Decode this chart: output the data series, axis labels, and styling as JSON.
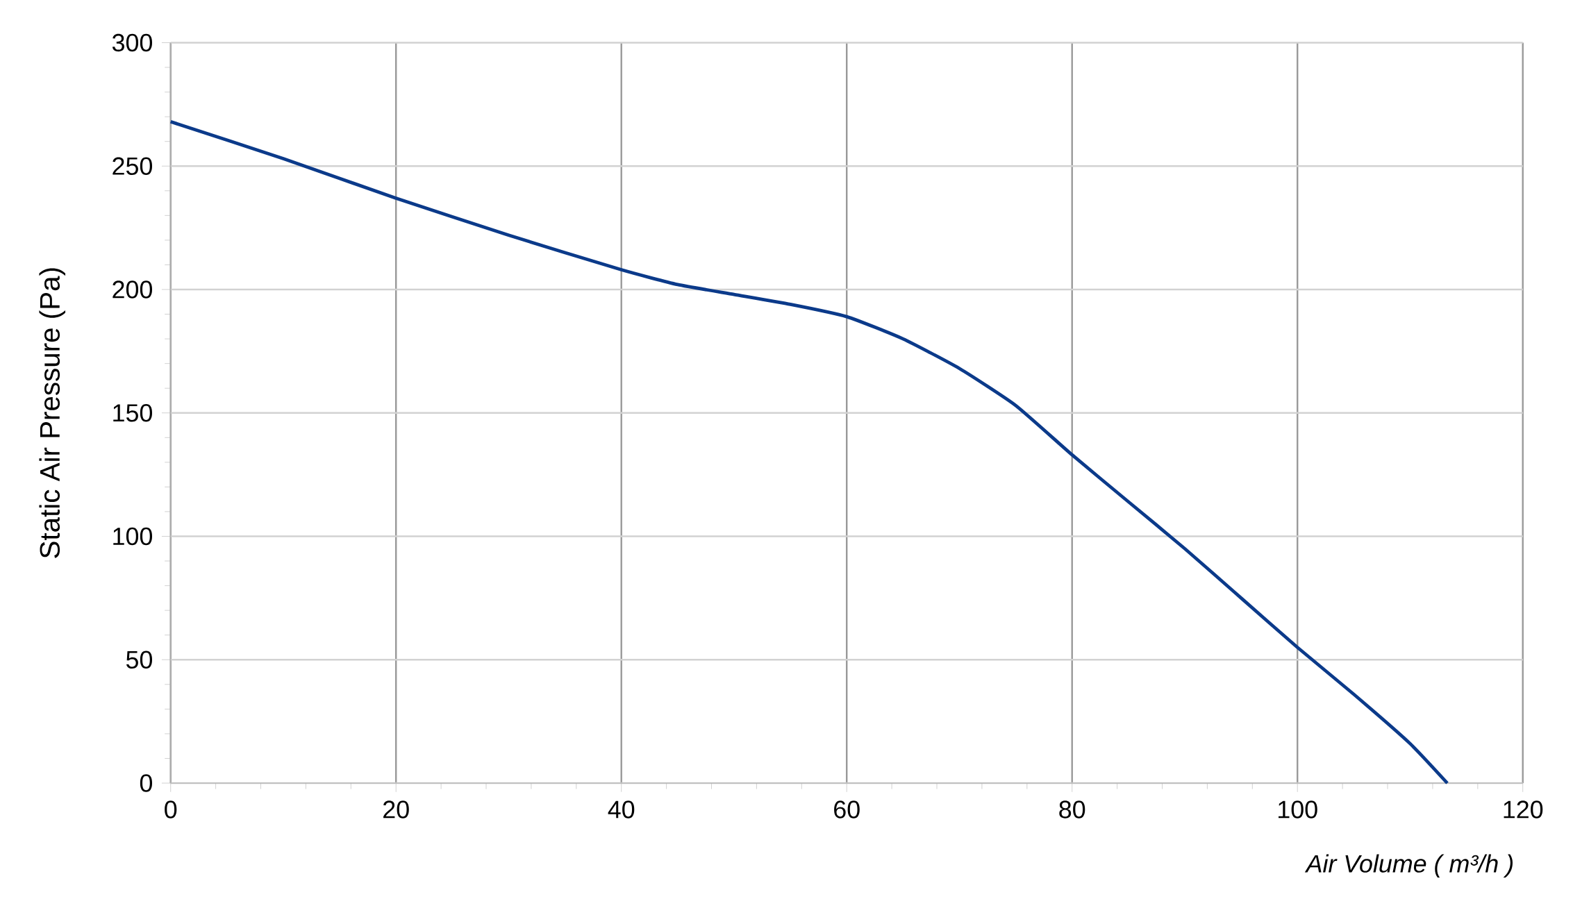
{
  "chart_data": {
    "type": "line",
    "xlabel": "*Air Volume ( m³/h )*",
    "ylabel": "Static Air Pressure  (Pa)",
    "x": [
      0,
      10,
      20,
      30,
      40,
      45,
      50,
      55,
      60,
      65,
      70,
      75,
      80,
      85,
      90,
      95,
      100,
      105,
      110,
      113.3
    ],
    "series": [
      {
        "color": "#0b3a8a",
        "values": [
          268,
          253,
          237,
          222,
          208,
          202,
          198,
          194,
          189,
          180,
          168,
          153,
          133,
          114,
          95,
          75,
          55,
          36,
          16,
          0
        ]
      }
    ],
    "xlim": [
      0,
      120
    ],
    "xticks": [
      0,
      20,
      40,
      60,
      80,
      100,
      120
    ],
    "ylim": [
      0,
      300
    ],
    "yticks": [
      0,
      50,
      100,
      150,
      200,
      250,
      300
    ],
    "grid": true,
    "marker": "none",
    "line_style": "solid"
  }
}
